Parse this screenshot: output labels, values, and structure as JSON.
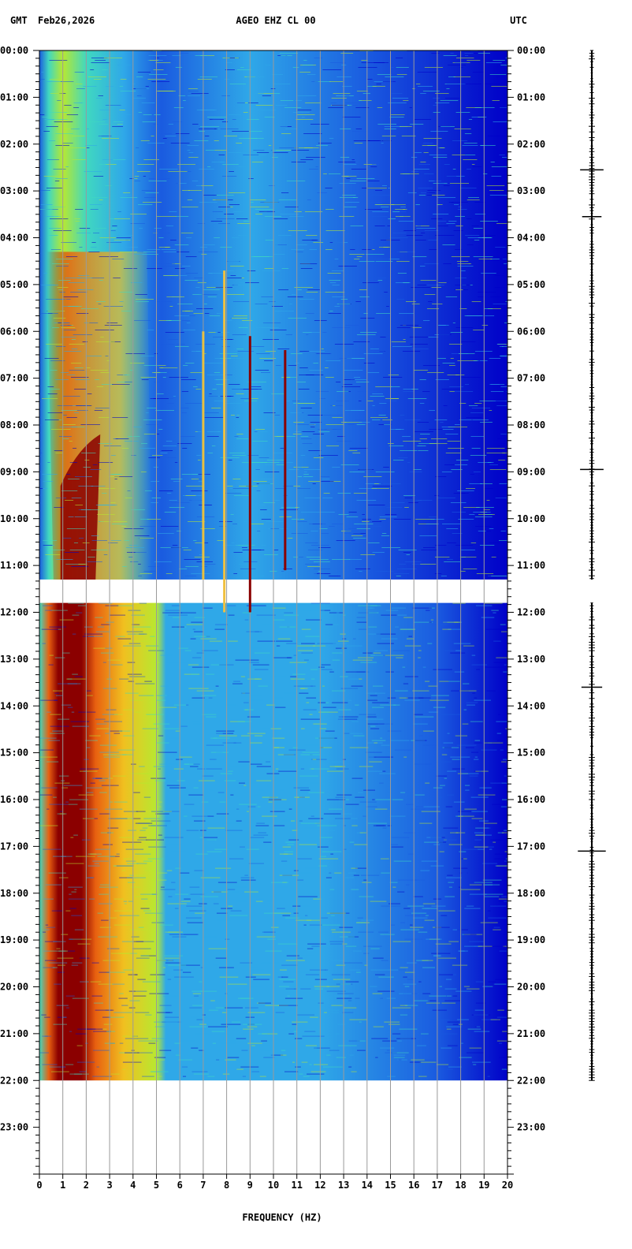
{
  "header": {
    "tz_left": "GMT",
    "date": "Feb26,2026",
    "station": "AGEO EHZ CL 00",
    "tz_right": "UTC"
  },
  "chart_data": {
    "type": "heatmap",
    "title": "AGEO EHZ CL 00",
    "xlabel": "FREQUENCY (HZ)",
    "ylabel": "",
    "x_ticks": [
      0,
      1,
      2,
      3,
      4,
      5,
      6,
      7,
      8,
      9,
      10,
      11,
      12,
      13,
      14,
      15,
      16,
      17,
      18,
      19,
      20
    ],
    "xlim": [
      0,
      20
    ],
    "y_ticks": [
      "00:00",
      "01:00",
      "02:00",
      "03:00",
      "04:00",
      "05:00",
      "06:00",
      "07:00",
      "08:00",
      "09:00",
      "10:00",
      "11:00",
      "12:00",
      "13:00",
      "14:00",
      "15:00",
      "16:00",
      "17:00",
      "18:00",
      "19:00",
      "20:00",
      "21:00",
      "22:00",
      "23:00"
    ],
    "ylim_hours": [
      0,
      24
    ],
    "data_ranges_hours": [
      [
        0,
        11.3
      ],
      [
        11.8,
        22.0
      ]
    ],
    "colormap": [
      "#0000c8",
      "#1a5be0",
      "#2fa8e8",
      "#40d8c0",
      "#b8e830",
      "#f0c020",
      "#e86010",
      "#8b0000"
    ],
    "tonal_lines": [
      {
        "freq_hz": 7.0,
        "start_hour": 6.0,
        "end_hour": 11.3,
        "color": "#e8c040"
      },
      {
        "freq_hz": 7.9,
        "start_hour": 4.7,
        "end_hour": 12.0,
        "color": "#f0c040"
      },
      {
        "freq_hz": 9.0,
        "start_hour": 6.1,
        "end_hour": 12.0,
        "color": "#8b0000"
      },
      {
        "freq_hz": 10.5,
        "start_hour": 6.4,
        "end_hour": 11.1,
        "color": "#8b0000"
      }
    ],
    "seismogram_events_hours": [
      2.55,
      3.55,
      8.95,
      13.6,
      17.1
    ]
  }
}
